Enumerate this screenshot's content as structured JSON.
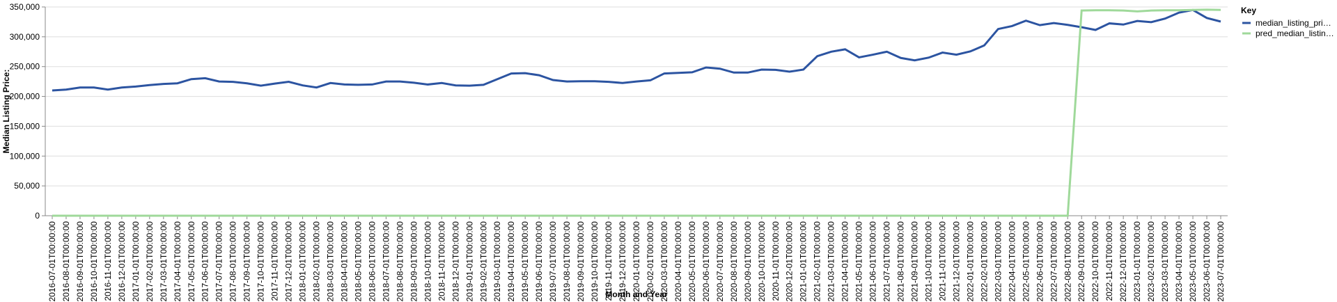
{
  "chart_data": {
    "type": "line",
    "x_label": "Month and Year",
    "y_label": "Median Listing Price:",
    "legend_title": "Key",
    "legend": "top-right",
    "grid": true,
    "categories": [
      "2016-07-01T00:00:00",
      "2016-08-01T00:00:00",
      "2016-09-01T00:00:00",
      "2016-10-01T00:00:00",
      "2016-11-01T00:00:00",
      "2016-12-01T00:00:00",
      "2017-01-01T00:00:00",
      "2017-02-01T00:00:00",
      "2017-03-01T00:00:00",
      "2017-04-01T00:00:00",
      "2017-05-01T00:00:00",
      "2017-06-01T00:00:00",
      "2017-07-01T00:00:00",
      "2017-08-01T00:00:00",
      "2017-09-01T00:00:00",
      "2017-10-01T00:00:00",
      "2017-11-01T00:00:00",
      "2017-12-01T00:00:00",
      "2018-01-01T00:00:00",
      "2018-02-01T00:00:00",
      "2018-03-01T00:00:00",
      "2018-04-01T00:00:00",
      "2018-05-01T00:00:00",
      "2018-06-01T00:00:00",
      "2018-07-01T00:00:00",
      "2018-08-01T00:00:00",
      "2018-09-01T00:00:00",
      "2018-10-01T00:00:00",
      "2018-11-01T00:00:00",
      "2018-12-01T00:00:00",
      "2019-01-01T00:00:00",
      "2019-02-01T00:00:00",
      "2019-03-01T00:00:00",
      "2019-04-01T00:00:00",
      "2019-05-01T00:00:00",
      "2019-06-01T00:00:00",
      "2019-07-01T00:00:00",
      "2019-08-01T00:00:00",
      "2019-09-01T00:00:00",
      "2019-10-01T00:00:00",
      "2019-11-01T00:00:00",
      "2019-12-01T00:00:00",
      "2020-01-01T00:00:00",
      "2020-02-01T00:00:00",
      "2020-03-01T00:00:00",
      "2020-04-01T00:00:00",
      "2020-05-01T00:00:00",
      "2020-06-01T00:00:00",
      "2020-07-01T00:00:00",
      "2020-08-01T00:00:00",
      "2020-09-01T00:00:00",
      "2020-10-01T00:00:00",
      "2020-11-01T00:00:00",
      "2020-12-01T00:00:00",
      "2021-01-01T00:00:00",
      "2021-02-01T00:00:00",
      "2021-03-01T00:00:00",
      "2021-04-01T00:00:00",
      "2021-05-01T00:00:00",
      "2021-06-01T00:00:00",
      "2021-07-01T00:00:00",
      "2021-08-01T00:00:00",
      "2021-09-01T00:00:00",
      "2021-10-01T00:00:00",
      "2021-11-01T00:00:00",
      "2021-12-01T00:00:00",
      "2022-01-01T00:00:00",
      "2022-02-01T00:00:00",
      "2022-03-01T00:00:00",
      "2022-04-01T00:00:00",
      "2022-05-01T00:00:00",
      "2022-06-01T00:00:00",
      "2022-07-01T00:00:00",
      "2022-08-01T00:00:00",
      "2022-09-01T00:00:00",
      "2022-10-01T00:00:00",
      "2022-11-01T00:00:00",
      "2022-12-01T00:00:00",
      "2023-01-01T00:00:00",
      "2023-02-01T00:00:00",
      "2023-03-01T00:00:00",
      "2023-04-01T00:00:00",
      "2023-05-01T00:00:00",
      "2023-06-01T00:00:00",
      "2023-07-01T00:00:00"
    ],
    "series": [
      {
        "name": "median_listing_pri…",
        "color": "#2c54a1",
        "values": [
          210000,
          211500,
          215000,
          215000,
          211500,
          215000,
          216500,
          219000,
          221000,
          222000,
          229000,
          230500,
          225000,
          224500,
          222000,
          218000,
          221500,
          224500,
          218500,
          215000,
          222500,
          220000,
          219500,
          220000,
          225000,
          225000,
          223000,
          220000,
          222500,
          218500,
          218000,
          219500,
          229000,
          238500,
          239000,
          235500,
          227500,
          225000,
          225500,
          225500,
          224500,
          222500,
          225000,
          227000,
          238500,
          239500,
          240500,
          248500,
          246500,
          240000,
          240000,
          245000,
          244500,
          241500,
          245000,
          267500,
          275000,
          279000,
          265500,
          270000,
          275000,
          264500,
          260500,
          265000,
          273500,
          270000,
          275500,
          285500,
          313000,
          318000,
          327000,
          319500,
          323000,
          320000,
          316000,
          311500,
          322500,
          320500,
          326500,
          324500,
          330500,
          340500,
          345000,
          331500,
          325500
        ]
      },
      {
        "name": "pred_median_listin…",
        "color": "#9fd99a",
        "values": [
          0,
          0,
          0,
          0,
          0,
          0,
          0,
          0,
          0,
          0,
          0,
          0,
          0,
          0,
          0,
          0,
          0,
          0,
          0,
          0,
          0,
          0,
          0,
          0,
          0,
          0,
          0,
          0,
          0,
          0,
          0,
          0,
          0,
          0,
          0,
          0,
          0,
          0,
          0,
          0,
          0,
          0,
          0,
          0,
          0,
          0,
          0,
          0,
          0,
          0,
          0,
          0,
          0,
          0,
          0,
          0,
          0,
          0,
          0,
          0,
          0,
          0,
          0,
          0,
          0,
          0,
          0,
          0,
          0,
          0,
          0,
          0,
          0,
          0,
          344000,
          344500,
          344500,
          344000,
          342500,
          344000,
          344500,
          344500,
          345000,
          345500,
          345000
        ]
      }
    ],
    "ylim": [
      0,
      350000
    ],
    "yticks": [
      0,
      {
        "value": 50000,
        "label": "50,000"
      },
      {
        "value": 100000,
        "label": "100,000"
      },
      {
        "value": 150000,
        "label": "150,000"
      },
      {
        "value": 200000,
        "label": "200,000"
      },
      {
        "value": 250000,
        "label": "250,000"
      },
      {
        "value": 300000,
        "label": "300,000"
      },
      {
        "value": 350000,
        "label": "350,000"
      }
    ]
  }
}
